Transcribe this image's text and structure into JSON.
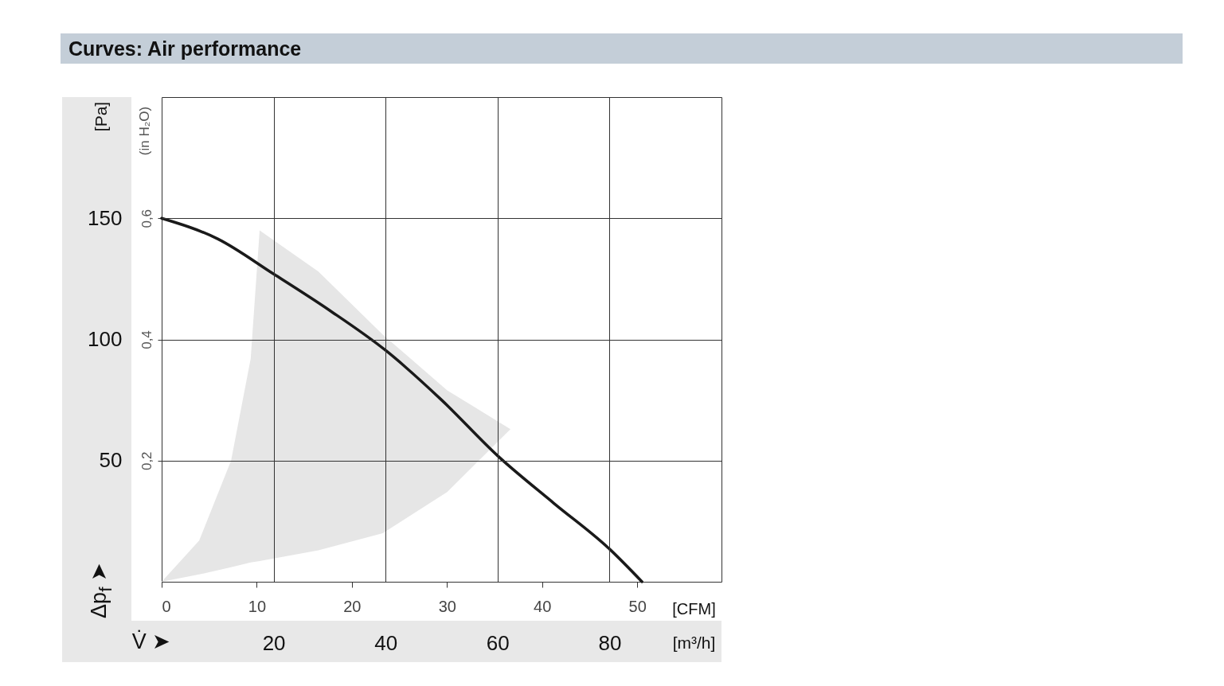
{
  "chart_data": {
    "type": "line",
    "title": "Curves: Air performance",
    "xlabel": "[m³/h]",
    "ylabel": "[Pa]",
    "x2label": "[CFM]",
    "y2label": "(in H₂O)",
    "xlim": [
      0,
      100
    ],
    "xticks": [
      20,
      40,
      60,
      80
    ],
    "x2lim": [
      0,
      58.86
    ],
    "x2ticks": [
      0,
      10,
      20,
      30,
      40,
      50
    ],
    "ylim": [
      0,
      200
    ],
    "yticks": [
      50,
      100,
      150
    ],
    "y2lim": [
      0,
      0.8
    ],
    "y2ticks": [
      {
        "value": 0.2,
        "label": "0,2"
      },
      {
        "value": 0.4,
        "label": "0,4"
      },
      {
        "value": 0.6,
        "label": "0,6"
      }
    ],
    "grid": true,
    "annotations": [
      "Δp$_{f}$ ➤",
      "V̇ ➤"
    ],
    "series": [
      {
        "type": "area",
        "color": "#e6e6e6",
        "x": [
          0,
          6.7,
          12.4,
          15.9,
          17.5,
          28,
          39.5,
          51,
          62.3
        ],
        "values": [
          0,
          17,
          50,
          92,
          145,
          128,
          102,
          79,
          63
        ]
      },
      {
        "type": "area",
        "color": "#ffffff",
        "x": [
          0,
          6.7,
          12.4,
          15.9,
          17.5,
          28,
          39.5,
          51,
          62.3
        ],
        "values": [
          0,
          3,
          6,
          8,
          8.5,
          13,
          20,
          37,
          63
        ]
      },
      {
        "color": "#1a1a1a",
        "x": [
          0,
          10,
          20,
          30,
          40,
          50,
          60,
          70,
          80,
          85.8
        ],
        "values": [
          150,
          141.5,
          127,
          112,
          95.5,
          75,
          52,
          32.5,
          13.5,
          0
        ]
      }
    ]
  }
}
